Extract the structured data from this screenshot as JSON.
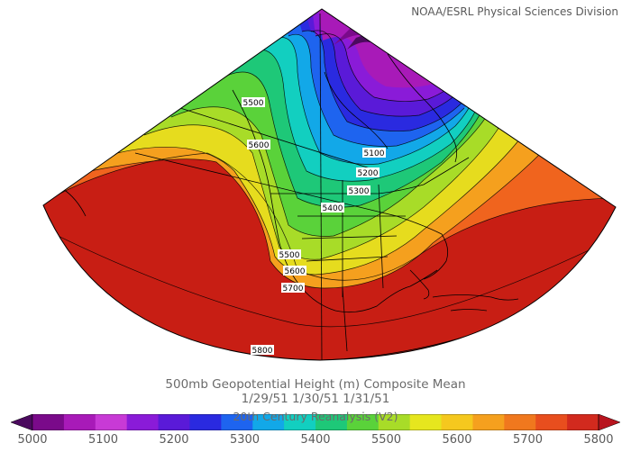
{
  "credit": "NOAA/ESRL Physical Sciences Division",
  "title": {
    "line1": "500mb Geopotential Height (m) Composite Mean",
    "line2": "1/29/51 1/30/51 1/31/51",
    "line3": "20th Century Reanalysis (V2)"
  },
  "contour_labels": [
    "5500",
    "5600",
    "5100",
    "5200",
    "5300",
    "5400",
    "5500",
    "5600",
    "5700",
    "5800"
  ],
  "colorbar": {
    "ticks": [
      "5000",
      "5100",
      "5200",
      "5300",
      "5400",
      "5500",
      "5600",
      "5700",
      "5800"
    ],
    "colors": [
      "#4b0a5e",
      "#7a0a8a",
      "#a81ab8",
      "#c83ad6",
      "#8a1bd8",
      "#5a1ad8",
      "#2a2ae0",
      "#1e64ef",
      "#12a8e8",
      "#12cfc0",
      "#1ec878",
      "#5ad23a",
      "#a8dc28",
      "#e6e61e",
      "#f5c81e",
      "#f5a01e",
      "#f0781e",
      "#e84e1e",
      "#d22a1e",
      "#b8141e"
    ]
  }
}
